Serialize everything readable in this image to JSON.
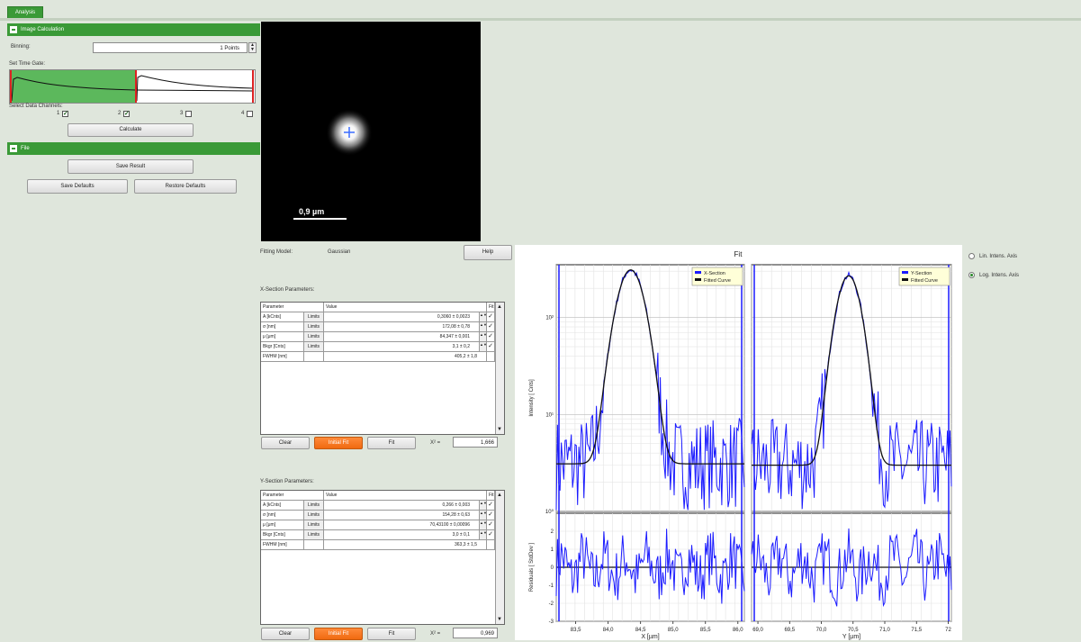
{
  "tabs": [
    {
      "label": "Analysis"
    }
  ],
  "left": {
    "image_calc": {
      "title": "Image Calculation",
      "binning_label": "Binning:",
      "binning_value": "1 Points",
      "timegate_label": "Set Time Gate:",
      "channels_label": "Select Data Channels:",
      "channels": [
        {
          "label": "1",
          "checked": true
        },
        {
          "label": "2",
          "checked": true
        },
        {
          "label": "3",
          "checked": false
        },
        {
          "label": "4",
          "checked": false
        }
      ],
      "calculate_label": "Calculate"
    },
    "file": {
      "title": "File",
      "save_result_label": "Save Result",
      "save_defaults_label": "Save Defaults",
      "restore_defaults_label": "Restore Defaults"
    }
  },
  "image": {
    "scale_label": "0,9 µm"
  },
  "fit": {
    "model_label": "Fitting Model:",
    "model_value": "Gaussian",
    "help_label": "Help",
    "x_section": {
      "title": "X-Section Parameters:",
      "headers": [
        "Parameter",
        "Value",
        "Fit"
      ],
      "rows": [
        {
          "param": "A [kCnts]",
          "value": "0,3060 ± 0,0023",
          "fit": true
        },
        {
          "param": "σ [nm]",
          "value": "172,08 ± 0,78",
          "fit": true
        },
        {
          "param": "μ [μm]",
          "value": "84,347 ± 0,001",
          "fit": true
        },
        {
          "param": "Bkgr [Cnts]",
          "value": "3,1 ± 0,2",
          "fit": true
        },
        {
          "param": "FWHM [nm]",
          "value": "405,2 ± 1,8",
          "fit": false
        }
      ],
      "limits_label": "Limits",
      "clear_label": "Clear",
      "initial_fit_label": "Initial Fit",
      "fit_label": "Fit",
      "chi_label": "X² =",
      "chi_value": "1,666"
    },
    "y_section": {
      "title": "Y-Section Parameters:",
      "headers": [
        "Parameter",
        "Value",
        "Fit"
      ],
      "rows": [
        {
          "param": "A [kCnts]",
          "value": "0,266 ± 0,003",
          "fit": true
        },
        {
          "param": "σ [nm]",
          "value": "154,28 ± 0,63",
          "fit": true
        },
        {
          "param": "μ [μm]",
          "value": "70,43100 ± 0,00096",
          "fit": true
        },
        {
          "param": "Bkgr [Cnts]",
          "value": "3,0 ± 0,1",
          "fit": true
        },
        {
          "param": "FWHM [nm]",
          "value": "363,3 ± 1,5",
          "fit": false
        }
      ],
      "limits_label": "Limits",
      "clear_label": "Clear",
      "initial_fit_label": "Initial Fit",
      "fit_label": "Fit",
      "chi_label": "X² =",
      "chi_value": "0,969"
    }
  },
  "options": {
    "lin_label": "Lin. Intens. Axis",
    "log_label": "Log. Intens. Axis",
    "selected": "log"
  },
  "chart_data": {
    "type": "line",
    "title": "Fit",
    "ylabel": "Intensity [ Cnts]",
    "residual_ylabel": "Residuals [ StdDev ]",
    "yscale": "log",
    "ylim": [
      1,
      350
    ],
    "yticks": [
      "10⁰",
      "10¹",
      "10²"
    ],
    "residual_ylim": [
      -3,
      3
    ],
    "residual_yticks": [
      "2",
      "1",
      "0",
      "-1",
      "-2",
      "-3"
    ],
    "legend": [
      "X-Section",
      "Fitted Curve",
      "Y-Section"
    ],
    "colors": {
      "data": "#1a1aff",
      "fit": "#111111"
    },
    "panels": [
      {
        "xlabel": "X [µm]",
        "xlim": [
          83.2,
          86.1
        ],
        "xticks": [
          "83,5",
          "84,0",
          "84,5",
          "85,0",
          "85,5",
          "86,0"
        ],
        "legend": [
          "X-Section",
          "Fitted Curve"
        ],
        "fit": {
          "A": 306,
          "mu": 84.347,
          "sigma": 0.172,
          "bkg": 3.1
        }
      },
      {
        "xlabel": "Y [µm]",
        "xlim": [
          68.9,
          72.05
        ],
        "xticks": [
          "69,0",
          "69,5",
          "70,0",
          "70,5",
          "71,0",
          "71,5",
          "72"
        ],
        "legend": [
          "Y-Section",
          "Fitted Curve"
        ],
        "fit": {
          "A": 266,
          "mu": 70.431,
          "sigma": 0.154,
          "bkg": 3.0
        }
      }
    ]
  }
}
